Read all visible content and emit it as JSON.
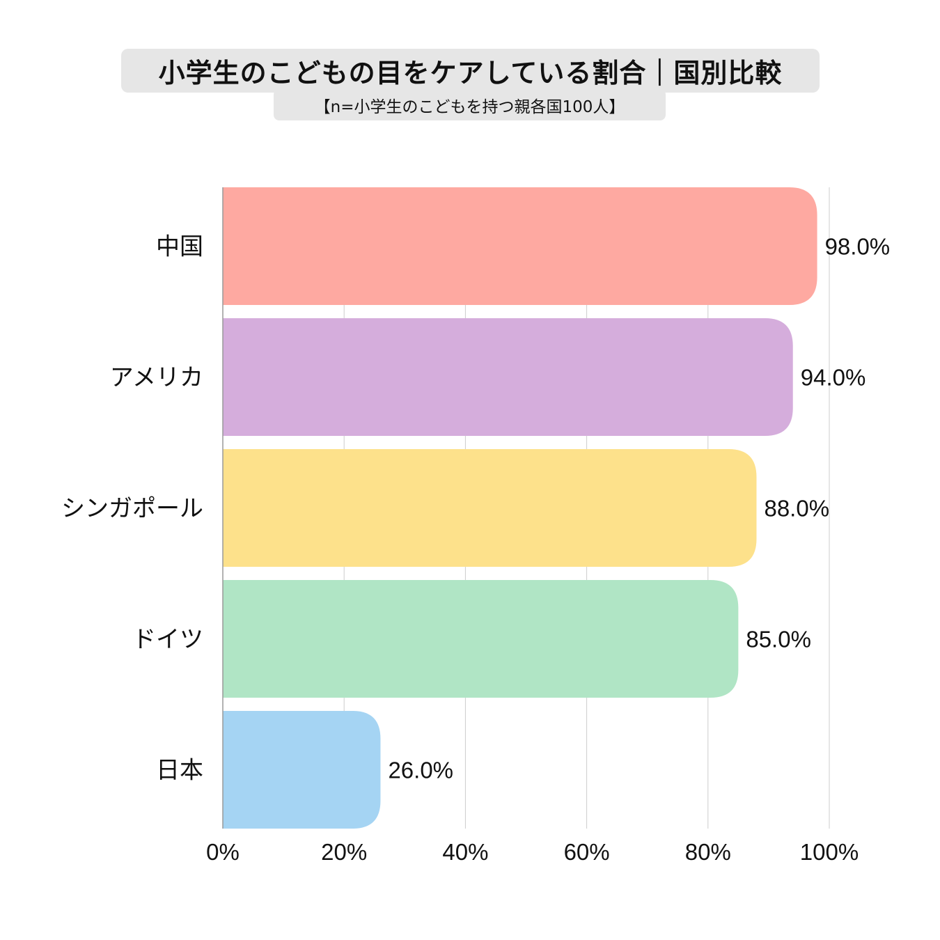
{
  "chart_data": {
    "type": "bar",
    "orientation": "horizontal",
    "title": "小学生のこどもの目をケアしている割合｜国別比較",
    "subtitle": "【n=小学生のこどもを持つ親各国100人】",
    "categories": [
      "中国",
      "アメリカ",
      "シンガポール",
      "ドイツ",
      "日本"
    ],
    "values": [
      98.0,
      94.0,
      88.0,
      85.0,
      26.0
    ],
    "value_labels": [
      "98.0%",
      "94.0%",
      "88.0%",
      "85.0%",
      "26.0%"
    ],
    "bar_colors": [
      "#fea9a1",
      "#d5addc",
      "#fde18b",
      "#b0e5c5",
      "#a5d4f3"
    ],
    "xlim": [
      0,
      100
    ],
    "x_ticks": [
      0,
      20,
      40,
      60,
      80,
      100
    ],
    "x_tick_labels": [
      "0%",
      "20%",
      "40%",
      "60%",
      "80%",
      "100%"
    ],
    "grid": "vertical",
    "legend": "none"
  }
}
